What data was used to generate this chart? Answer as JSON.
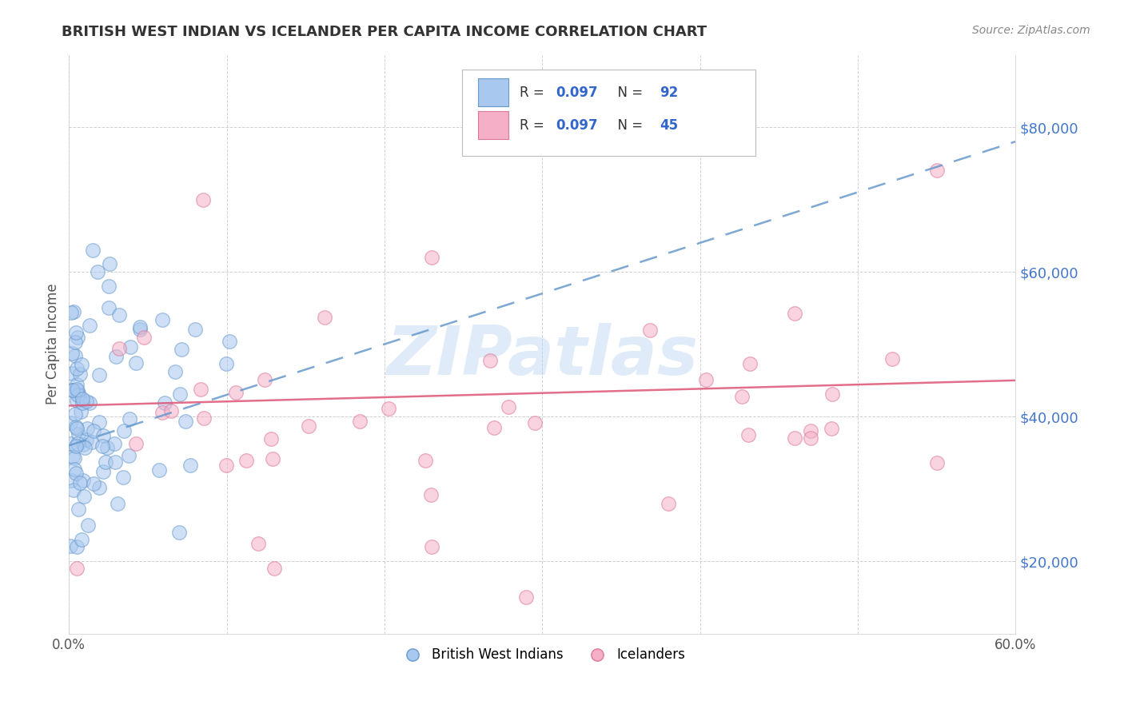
{
  "title": "BRITISH WEST INDIAN VS ICELANDER PER CAPITA INCOME CORRELATION CHART",
  "source": "Source: ZipAtlas.com",
  "ylabel": "Per Capita Income",
  "xlim": [
    0.0,
    0.6
  ],
  "ylim": [
    10000,
    90000
  ],
  "yticks": [
    20000,
    40000,
    60000,
    80000
  ],
  "ytick_labels": [
    "$20,000",
    "$40,000",
    "$60,000",
    "$80,000"
  ],
  "xticks": [
    0.0,
    0.1,
    0.2,
    0.3,
    0.4,
    0.5,
    0.6
  ],
  "xtick_labels": [
    "0.0%",
    "",
    "",
    "",
    "",
    "",
    "60.0%"
  ],
  "watermark": "ZIPatlas",
  "legend_labels": [
    "British West Indians",
    "Icelanders"
  ],
  "bwi_N": 92,
  "ice_N": 45,
  "bwi_R": 0.097,
  "ice_R": 0.097,
  "bwi_color": "#a8c8f0",
  "bwi_edge": "#6699cc",
  "ice_color": "#f5b0c8",
  "ice_edge": "#dd7799",
  "trend_bwi_color": "#6699cc",
  "trend_ice_color": "#dd5577",
  "background_color": "#ffffff",
  "grid_color": "#cccccc",
  "title_color": "#333333",
  "ylabel_color": "#555555",
  "ytick_color": "#4477cc",
  "xtick_color": "#555555",
  "source_color": "#888888",
  "bwi_trend_y0": 36000,
  "bwi_trend_y1": 78000,
  "ice_trend_y0": 41500,
  "ice_trend_y1": 45000
}
